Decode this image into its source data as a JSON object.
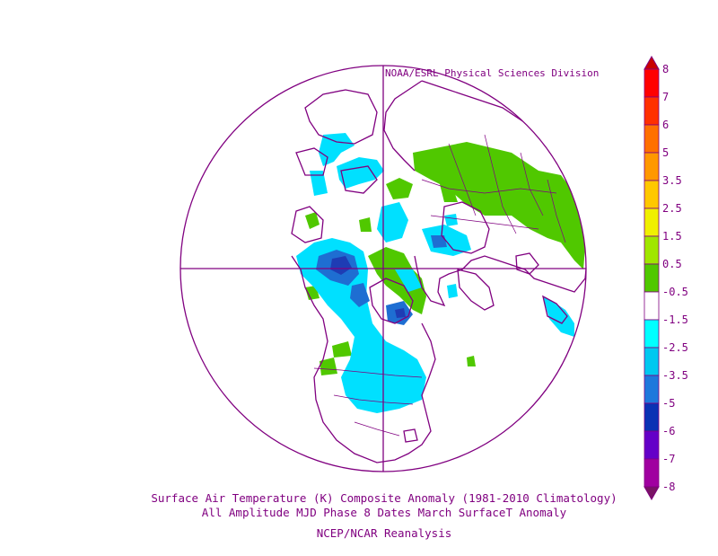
{
  "credit": "NOAA/ESRL Physical Sciences Division",
  "title_line1": "Surface Air Temperature (K) Composite Anomaly (1981-2010 Climatology)",
  "title_line2": "All Amplitude MJD Phase 8 Dates March SurfaceT Anomaly",
  "title_line3": "NCEP/NCAR Reanalysis",
  "colorbar": {
    "labels": [
      "8",
      "7",
      "6",
      "5",
      "3.5",
      "2.5",
      "1.5",
      "0.5",
      "-0.5",
      "-1.5",
      "-2.5",
      "-3.5",
      "-5",
      "-6",
      "-7",
      "-8"
    ],
    "colors": [
      "#ff0000",
      "#ff3000",
      "#ff7000",
      "#ff9800",
      "#ffc800",
      "#f0f000",
      "#a0e600",
      "#50c800",
      "#ffffff",
      "#00ffff",
      "#00c8f0",
      "#1e78dc",
      "#0a32b4",
      "#6400c8",
      "#a000a0",
      "#c80096",
      "#781464"
    ],
    "top_arrow_color": "#c80000",
    "bottom_arrow_color": "#781464"
  },
  "map_colors": {
    "outline": "#800080",
    "cyan": "#00e0ff",
    "light_blue": "#00c8f0",
    "blue": "#1e6ed2",
    "dark_blue": "#1e3cb4",
    "green": "#50c800"
  }
}
